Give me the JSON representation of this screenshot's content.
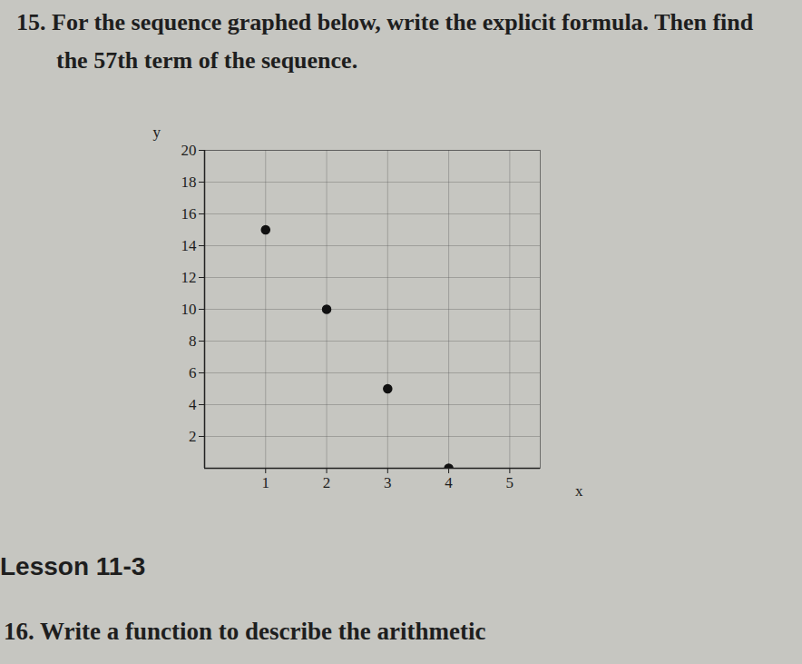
{
  "question": "15. For the sequence graphed below, write the explicit formula. Then find the 57th term of the sequence.",
  "lesson": "Lesson 11-3",
  "next_question": "16. Write a function to describe the arithmetic",
  "chart_data": {
    "type": "scatter",
    "x_label": "x",
    "y_label": "y",
    "x": [
      1,
      2,
      3,
      4
    ],
    "values": [
      15,
      10,
      5,
      0
    ],
    "color": "#111111",
    "marker": "circle",
    "xlim": [
      0,
      5.5
    ],
    "ylim": [
      0,
      20
    ],
    "xticks": [
      1,
      2,
      3,
      4,
      5
    ],
    "yticks": [
      2,
      4,
      6,
      8,
      10,
      12,
      14,
      16,
      18,
      20
    ],
    "grid": true
  }
}
